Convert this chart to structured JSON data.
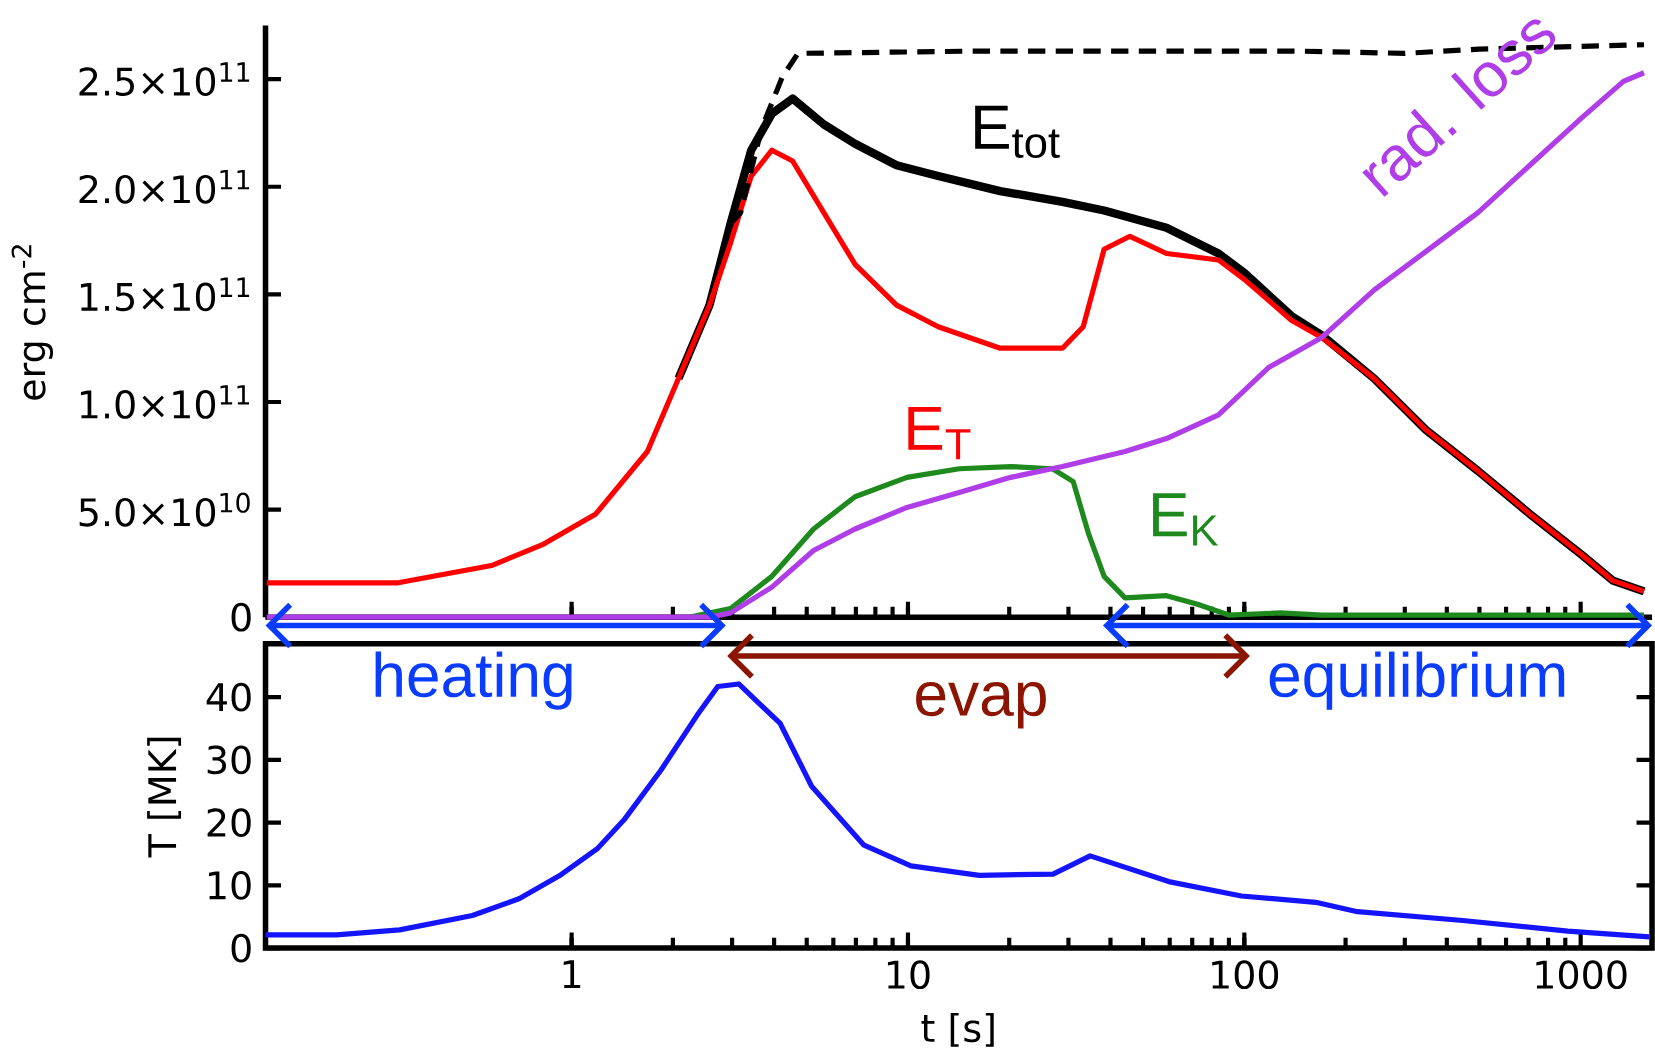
{
  "chart_data": [
    {
      "type": "line",
      "ylabel": "erg cm$^{-2}$",
      "log": "x",
      "tick_labels": "y",
      "xlim": [
        0.123,
        1630
      ],
      "xticks": [
        1,
        10,
        100,
        1000
      ],
      "ylim": [
        0,
        275000000000.0
      ],
      "yticks": [
        0,
        {
          "value": 50000000000.0,
          "label": "5.0×10$^{10}$"
        },
        {
          "value": 100000000000.0,
          "label": "1.0×10$^{11}$"
        },
        {
          "value": 150000000000.0,
          "label": "1.5×10$^{11}$"
        },
        {
          "value": 200000000000.0,
          "label": "2.0×10$^{11}$"
        },
        {
          "value": 250000000000.0,
          "label": "2.5×10$^{11}$"
        }
      ],
      "series": [
        {
          "name": "E$_{tot}$",
          "color": "#000000",
          "x": [
            2.08,
            2.57,
            2.97,
            3.42,
            3.94,
            4.54,
            5.62,
            6.96,
            9.25,
            12.3,
            18.8,
            28.8,
            38.3,
            58.7,
            83.8,
            100,
            138,
            170,
            243,
            347,
            495,
            706,
            1007,
            1247,
            1543
          ],
          "values": [
            111000000000.0,
            145000000000.0,
            183000000000.0,
            217000000000.0,
            234000000000.0,
            241000000000.0,
            229000000000.0,
            220000000000.0,
            210000000000.0,
            205000000000.0,
            198000000000.0,
            193000000000.0,
            189000000000.0,
            181000000000.0,
            169000000000.0,
            160000000000.0,
            140000000000.0,
            131000000000.0,
            111000000000.0,
            87000000000.0,
            68000000000.0,
            48000000000.0,
            29000000000.0,
            17000000000.0,
            12000000000.0
          ]
        },
        {
          "name": "E$_{T}$",
          "color": "#ff0000",
          "x": [
            0.124,
            0.305,
            0.578,
            0.826,
            1.18,
            1.68,
            2.08,
            2.57,
            2.97,
            3.42,
            3.94,
            4.54,
            5.62,
            6.96,
            9.25,
            12.3,
            18.8,
            28.8,
            33.2,
            38.3,
            45.7,
            58.7,
            83.8,
            100,
            138,
            170,
            243,
            347,
            495,
            706,
            1007,
            1247,
            1543
          ],
          "values": [
            16000000000.0,
            16000000000.0,
            24000000000.0,
            34000000000.0,
            48000000000.0,
            77000000000.0,
            111000000000.0,
            145000000000.0,
            174000000000.0,
            205000000000.0,
            217000000000.0,
            212000000000.0,
            188000000000.0,
            164000000000.0,
            145000000000.0,
            135000000000.0,
            125000000000.0,
            125000000000.0,
            135000000000.0,
            171000000000.0,
            177000000000.0,
            169000000000.0,
            166000000000.0,
            157000000000.0,
            138000000000.0,
            130000000000.0,
            111000000000.0,
            87000000000.0,
            68000000000.0,
            48000000000.0,
            29000000000.0,
            17000000000.0,
            12000000000.0
          ]
        },
        {
          "color": "#000000",
          "line_style": "dashed",
          "x": [
            2.97,
            3.18,
            3.67,
            4.23,
            4.71,
            15,
            150,
            300,
            500,
            1543
          ],
          "values": [
            183000000000.0,
            188000000000.0,
            227000000000.0,
            251000000000.0,
            262000000000.0,
            263000000000.0,
            263000000000.0,
            262000000000.0,
            264000000000.0,
            266000000000.0
          ]
        },
        {
          "name": "E$_{K}$",
          "color": "#1e8a1e",
          "x": [
            2.23,
            2.97,
            3.94,
            5.24,
            6.96,
            9.93,
            14.2,
            20.2,
            26.9,
            31.0,
            34.4,
            38.3,
            44.2,
            58.7,
            72.6,
            89.9,
            128,
            170,
            1543
          ],
          "values": [
            0,
            4000000000.0,
            19000000000.0,
            41000000000.0,
            56000000000.0,
            65000000000.0,
            69000000000.0,
            70000000000.0,
            69000000000.0,
            63000000000.0,
            39000000000.0,
            19000000000.0,
            9000000000.0,
            10000000000.0,
            6000000000.0,
            1000000000.0,
            2000000000.0,
            1000000000.0,
            1000000000.0
          ]
        },
        {
          "name": "rad. loss",
          "color": "#b03ee8",
          "x": [
            0.124,
            2.57,
            2.97,
            3.94,
            5.24,
            6.96,
            9.93,
            14.2,
            20.2,
            28.8,
            44.2,
            58.7,
            83.8,
            118,
            170,
            243,
            347,
            495,
            706,
            1007,
            1340,
            1543
          ],
          "values": [
            0,
            0,
            2000000000.0,
            14000000000.0,
            31000000000.0,
            41000000000.0,
            51000000000.0,
            58000000000.0,
            65000000000.0,
            70000000000.0,
            77000000000.0,
            83000000000.0,
            94000000000.0,
            116000000000.0,
            130000000000.0,
            152000000000.0,
            170000000000.0,
            188000000000.0,
            210000000000.0,
            232000000000.0,
            249000000000.0,
            253000000000.0
          ]
        }
      ]
    },
    {
      "type": "line",
      "xlabel": "t [s]",
      "ylabel": "T [MK]",
      "log": "x",
      "xlim": [
        0.123,
        1630
      ],
      "xticks": [
        1,
        10,
        100,
        1000
      ],
      "ylim": [
        0,
        48.5
      ],
      "yticks": [
        0,
        10,
        20,
        30,
        40
      ],
      "series": [
        {
          "color": "#1414ff",
          "x": [
            0.123,
            0.2,
            0.308,
            0.507,
            0.7,
            0.93,
            1.19,
            1.43,
            1.84,
            2.36,
            2.72,
            3.14,
            4.17,
            5.17,
            7.4,
            10.2,
            16.3,
            27,
            34.8,
            59.6,
            98,
            163,
            217,
            446,
            915,
            1600
          ],
          "values": [
            2.1,
            2.1,
            2.9,
            5.2,
            7.9,
            11.7,
            15.8,
            20.4,
            28.3,
            37.1,
            41.7,
            42.1,
            35.8,
            25.8,
            16.4,
            13.1,
            11.6,
            11.8,
            14.7,
            10.6,
            8.3,
            7.3,
            5.8,
            4.4,
            2.7,
            1.8
          ]
        }
      ],
      "annotations": [
        "heating",
        "evap",
        "equilibrium"
      ]
    }
  ]
}
